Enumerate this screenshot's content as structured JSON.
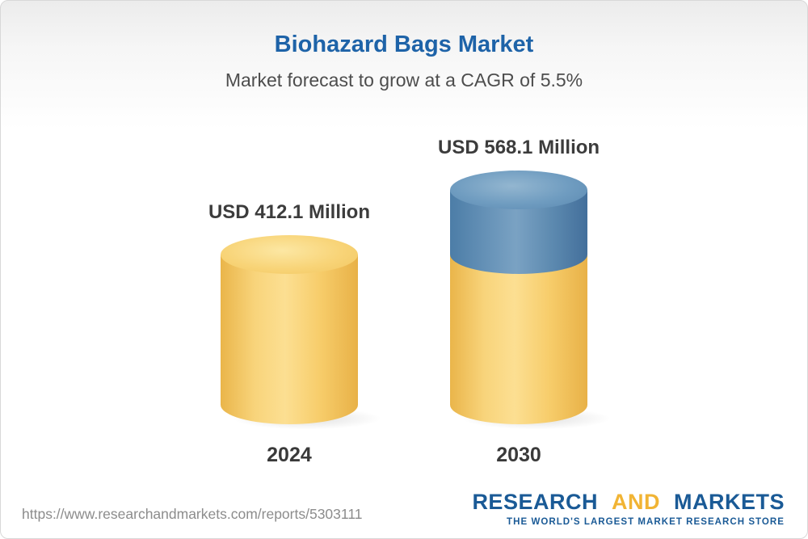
{
  "header": {
    "title": "Biohazard Bags Market",
    "subtitle": "Market forecast to grow at a CAGR of 5.5%"
  },
  "chart_data": {
    "type": "bar",
    "variant": "3d-cylinder",
    "title": "Biohazard Bags Market",
    "subtitle": "Market forecast to grow at a CAGR of 5.5%",
    "cagr_percent": 5.5,
    "categories": [
      "2024",
      "2030"
    ],
    "values": [
      412.1,
      568.1
    ],
    "unit": "USD Million",
    "value_labels": [
      "USD 412.1 Million",
      "USD 568.1 Million"
    ],
    "series": [
      {
        "name": "2024 base value",
        "color": "#F6C75C"
      },
      {
        "name": "2030 growth segment",
        "color": "#4E80AC"
      }
    ],
    "ylim": [
      0,
      568.1
    ],
    "grid": false,
    "legend": "none"
  },
  "footer": {
    "url": "https://www.researchandmarkets.com/reports/5303111",
    "logo_research": "RESEARCH",
    "logo_and": "AND",
    "logo_markets": "MARKETS",
    "tagline": "THE WORLD'S LARGEST MARKET RESEARCH STORE"
  },
  "colors": {
    "title_blue": "#1E63A8",
    "subtitle_gray": "#4D4D4D",
    "bar_yellow": "#F6C75C",
    "bar_blue": "#4E80AC",
    "logo_blue": "#1A5A96",
    "logo_yellow": "#F1B434",
    "url_gray": "#8C8C8C"
  }
}
